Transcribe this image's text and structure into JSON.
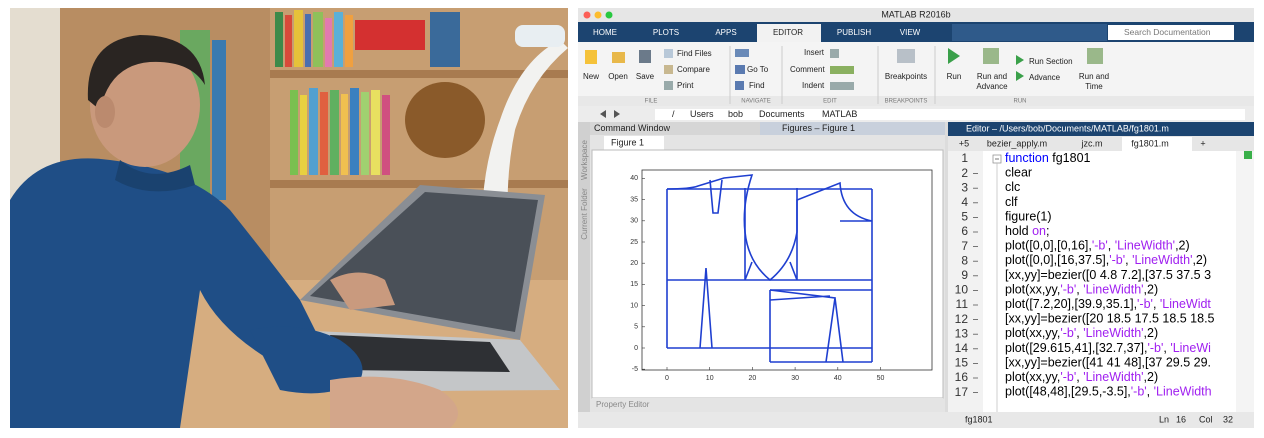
{
  "window": {
    "title": "MATLAB R2016b"
  },
  "tabs": [
    "HOME",
    "PLOTS",
    "APPS",
    "EDITOR",
    "PUBLISH",
    "VIEW"
  ],
  "search": "Search Documentation",
  "ribbon": {
    "new": "New",
    "open": "Open",
    "save": "Save",
    "find_files": "Find Files",
    "compare": "Compare",
    "print": "Print",
    "go_to": "Go To",
    "find": "Find",
    "insert": "Insert",
    "comment": "Comment",
    "indent": "Indent",
    "breakpoints": "Breakpoints",
    "run": "Run",
    "run_and_advance": [
      "Run and",
      "Advance"
    ],
    "run_section": "Run Section",
    "advance": "Advance",
    "run_and_time": [
      "Run and",
      "Time"
    ],
    "sections": [
      "FILE",
      "NAVIGATE",
      "EDIT",
      "BREAKPOINTS",
      "RUN"
    ]
  },
  "path": [
    "/",
    "Users",
    "bob",
    "Documents",
    "MATLAB"
  ],
  "side_labels": [
    "Workspace",
    "Current Folder"
  ],
  "figure_panel": {
    "command_window": "Command Window",
    "title": "Figures – Figure 1",
    "tab": "Figure 1",
    "property_editor": "Property Editor",
    "xticks": [
      0,
      10,
      20,
      30,
      40,
      50
    ],
    "yticks": [
      -5,
      0,
      5,
      10,
      15,
      20,
      25,
      30,
      35,
      40
    ]
  },
  "editor": {
    "title": "Editor – /Users/bob/Documents/MATLAB/fg1801.m",
    "tabs": [
      "+5",
      "bezier_apply.m",
      "jzc.m",
      "fg1801.m",
      "+"
    ],
    "line_numbers": [
      1,
      2,
      3,
      4,
      5,
      6,
      7,
      8,
      9,
      10,
      11,
      12,
      13,
      14,
      15,
      16,
      17
    ],
    "lines": [
      "function fg1801",
      "clear",
      "clc",
      "clf",
      "figure(1)",
      "hold on;",
      "plot([0,0],[0,16],'-b', 'LineWidth',2)",
      "plot([0,0],[16,37.5],'-b', 'LineWidth',2)",
      "[xx,yy]=bezier([0 4.8 7.2],[37.5 37.5 3",
      "plot(xx,yy,'-b', 'LineWidth',2)",
      "plot([7.2,20],[39.9,35.1],'-b', 'LineWidt",
      "[xx,yy]=bezier([20 18.5 17.5 18.5 18.5",
      "plot(xx,yy,'-b', 'LineWidth',2)",
      "plot([29.615,41],[32.7,37],'-b', 'LineWi",
      "[xx,yy]=bezier([41 41 48],[37 29.5 29.",
      "plot(xx,yy,'-b', 'LineWidth',2)",
      "plot([48,48],[29.5,-3.5],'-b', 'LineWidth"
    ]
  },
  "status": {
    "file": "fg1801",
    "ln_label": "Ln",
    "ln": 16,
    "col_label": "Col",
    "col": 32
  }
}
